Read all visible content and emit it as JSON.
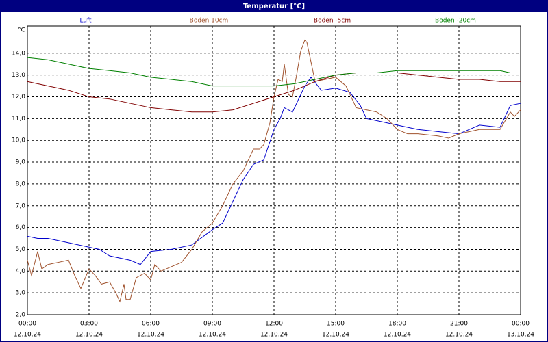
{
  "chart_data": {
    "type": "line",
    "title": "Temperatur [°C]",
    "y_unit": "°C",
    "xlim": [
      0,
      24
    ],
    "xticks": [
      {
        "value": 0,
        "label": "00:00"
      },
      {
        "value": 3,
        "label": "03:00"
      },
      {
        "value": 6,
        "label": "06:00"
      },
      {
        "value": 9,
        "label": "09:00"
      },
      {
        "value": 12,
        "label": "12:00"
      },
      {
        "value": 15,
        "label": "15:00"
      },
      {
        "value": 18,
        "label": "18:00"
      },
      {
        "value": 21,
        "label": "21:00"
      },
      {
        "value": 24,
        "label": "00:00"
      }
    ],
    "xtick_dates": [
      "12.10.24",
      "12.10.24",
      "12.10.24",
      "12.10.24",
      "12.10.24",
      "12.10.24",
      "12.10.24",
      "12.10.24",
      "13.10.24"
    ],
    "ylim": [
      2,
      15.25
    ],
    "yticks": [
      {
        "value": 2,
        "label": "2,0"
      },
      {
        "value": 3,
        "label": "3,0"
      },
      {
        "value": 4,
        "label": "4,0"
      },
      {
        "value": 5,
        "label": "5,0"
      },
      {
        "value": 6,
        "label": "6,0"
      },
      {
        "value": 7,
        "label": "7,0"
      },
      {
        "value": 8,
        "label": "8,0"
      },
      {
        "value": 9,
        "label": "9,0"
      },
      {
        "value": 10,
        "label": "10,0"
      },
      {
        "value": 11,
        "label": "11,0"
      },
      {
        "value": 12,
        "label": "12,0"
      },
      {
        "value": 13,
        "label": "13,0"
      },
      {
        "value": 14,
        "label": "14,0"
      }
    ],
    "grid": true,
    "series": [
      {
        "name": "Luft",
        "color": "#0000cc",
        "x": [
          0,
          0.5,
          1,
          2,
          3,
          3.5,
          4,
          5,
          5.5,
          6,
          7,
          8,
          9,
          9.5,
          10,
          10.5,
          11,
          11.5,
          12,
          12.3,
          12.5,
          12.9,
          13.5,
          13.8,
          14.3,
          15,
          15.7,
          16.2,
          16.5,
          17,
          18,
          19,
          20,
          21,
          22,
          23,
          23.5,
          24
        ],
        "values": [
          5.6,
          5.5,
          5.5,
          5.3,
          5.1,
          5.0,
          4.7,
          4.5,
          4.3,
          4.9,
          5.0,
          5.2,
          5.9,
          6.2,
          7.2,
          8.2,
          8.9,
          9.1,
          10.5,
          11.0,
          11.5,
          11.3,
          12.5,
          12.9,
          12.3,
          12.4,
          12.2,
          11.6,
          11.0,
          10.9,
          10.7,
          10.5,
          10.4,
          10.3,
          10.7,
          10.6,
          11.6,
          11.7
        ]
      },
      {
        "name": "Boden 10cm",
        "color": "#a0522d",
        "x": [
          0,
          0.2,
          0.5,
          0.7,
          1,
          1.5,
          2,
          2.3,
          2.6,
          3,
          3.3,
          3.6,
          4,
          4.3,
          4.5,
          4.7,
          4.8,
          5,
          5.3,
          5.7,
          6,
          6.2,
          6.5,
          7,
          7.5,
          8,
          8.5,
          9,
          9.5,
          10,
          10.5,
          11,
          11.3,
          11.5,
          11.8,
          12,
          12.2,
          12.4,
          12.5,
          12.7,
          12.9,
          13.1,
          13.3,
          13.5,
          13.6,
          14,
          14.5,
          15,
          15.5,
          16,
          16.5,
          17,
          17.5,
          18,
          18.5,
          19,
          20,
          20.5,
          21,
          21.5,
          22,
          23,
          23.5,
          23.7,
          24
        ],
        "values": [
          4.5,
          3.8,
          4.9,
          4.1,
          4.3,
          4.4,
          4.5,
          3.8,
          3.2,
          4.1,
          3.8,
          3.4,
          3.5,
          3.0,
          2.6,
          3.4,
          2.7,
          2.7,
          3.7,
          3.9,
          3.6,
          4.3,
          4.0,
          4.2,
          4.4,
          5.0,
          5.8,
          6.2,
          7.0,
          8.0,
          8.6,
          9.6,
          9.6,
          9.8,
          10.8,
          12.0,
          12.8,
          12.7,
          13.5,
          12.1,
          12.0,
          13.0,
          14.1,
          14.6,
          14.5,
          12.7,
          12.8,
          12.9,
          12.5,
          11.5,
          11.4,
          11.3,
          11.0,
          10.5,
          10.3,
          10.3,
          10.2,
          10.1,
          10.3,
          10.4,
          10.5,
          10.5,
          11.3,
          11.1,
          11.4
        ]
      },
      {
        "name": "Boden -5cm",
        "color": "#800000",
        "x": [
          0,
          1,
          2,
          3,
          4,
          5,
          6,
          7,
          8,
          9,
          10,
          11,
          12,
          13,
          14,
          15,
          16,
          17,
          18,
          19,
          20,
          21,
          22,
          23,
          24
        ],
        "values": [
          12.7,
          12.5,
          12.3,
          12.0,
          11.9,
          11.7,
          11.5,
          11.4,
          11.3,
          11.3,
          11.4,
          11.7,
          12.0,
          12.3,
          12.7,
          13.0,
          13.1,
          13.1,
          13.1,
          13.0,
          12.9,
          12.8,
          12.8,
          12.7,
          12.7
        ]
      },
      {
        "name": "Boden -20cm",
        "color": "#008000",
        "x": [
          0,
          1,
          2,
          3,
          4,
          5,
          6,
          7,
          8,
          9,
          10,
          11,
          12,
          13,
          14,
          15,
          16,
          17,
          18,
          19,
          20,
          21,
          22,
          23,
          23.5,
          24
        ],
        "values": [
          13.8,
          13.7,
          13.5,
          13.3,
          13.2,
          13.1,
          12.9,
          12.8,
          12.7,
          12.5,
          12.5,
          12.5,
          12.5,
          12.6,
          12.8,
          13.0,
          13.1,
          13.1,
          13.2,
          13.2,
          13.2,
          13.2,
          13.2,
          13.2,
          13.1,
          13.1
        ]
      }
    ]
  }
}
